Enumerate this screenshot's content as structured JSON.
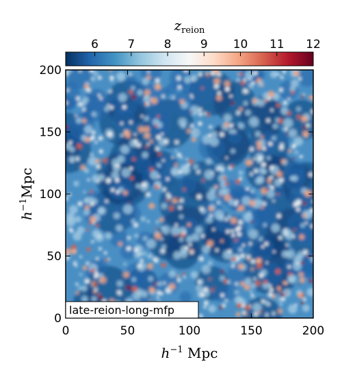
{
  "chart_data": {
    "type": "heatmap",
    "title": "",
    "colorbar": {
      "label_base": "z",
      "label_sub": "reion",
      "min": 5.2,
      "max": 12.0,
      "ticks": [
        "6",
        "7",
        "8",
        "9",
        "10",
        "11",
        "12"
      ],
      "colormap": "RdBu_r",
      "colors": [
        "#053061",
        "#2166ac",
        "#4393c3",
        "#92c5de",
        "#d1e5f0",
        "#f7f7f7",
        "#fddbc7",
        "#f4a582",
        "#d6604d",
        "#b2182b",
        "#67001f"
      ]
    },
    "x_axis": {
      "label_prefix": "h",
      "label_sup": "−1",
      "label_unit": " Mpc",
      "range": [
        0,
        200
      ],
      "ticks": [
        "0",
        "50",
        "100",
        "150",
        "200"
      ]
    },
    "y_axis": {
      "label_prefix": "h",
      "label_sup": "−1",
      "label_unit": "Mpc",
      "range": [
        0,
        200
      ],
      "ticks": [
        "0",
        "50",
        "100",
        "150",
        "200"
      ]
    },
    "panel_label": "late-reion-long-mfp",
    "grid": false
  }
}
